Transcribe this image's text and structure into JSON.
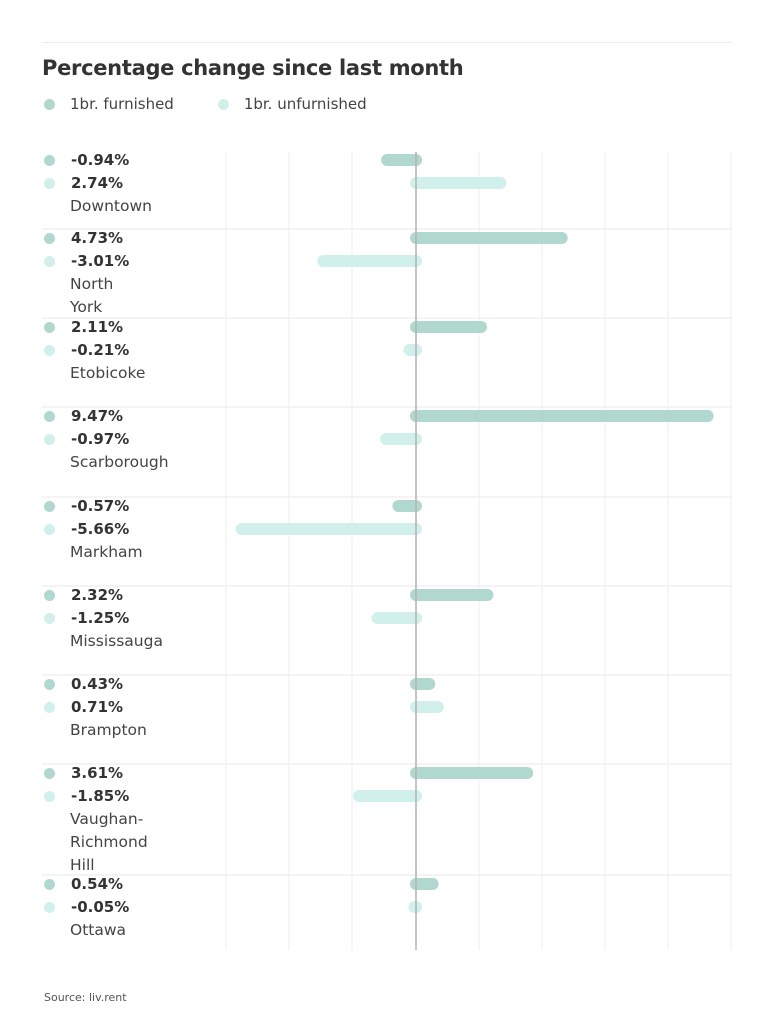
{
  "colors": {
    "furnished": "#b0d8cf",
    "unfurnished": "#d1f0eb",
    "zero_line": "#b5b5b5",
    "grid": "#f0f0f0",
    "text": "#333333"
  },
  "chart_data": {
    "type": "bar",
    "orientation": "horizontal",
    "title": "Percentage change since last month",
    "xlabel": "",
    "ylabel": "",
    "legend_position": "top-left",
    "grid": true,
    "xlim": [
      -6,
      10
    ],
    "categories": [
      "Downtown",
      "North York",
      "Etobicoke",
      "Scarborough",
      "Markham",
      "Mississauga",
      "Brampton",
      "Vaughan-\nRichmond Hill",
      "Ottawa"
    ],
    "series": [
      {
        "name": "1br. furnished",
        "values": [
          -0.94,
          4.73,
          2.11,
          9.47,
          -0.57,
          2.32,
          0.43,
          3.61,
          0.54
        ]
      },
      {
        "name": "1br. unfurnished",
        "values": [
          2.74,
          -3.01,
          -0.21,
          -0.97,
          -5.66,
          -1.25,
          0.71,
          -1.85,
          -0.05
        ]
      }
    ],
    "value_labels": {
      "furnished": [
        "-0.94%",
        "4.73%",
        "2.11%",
        "9.47%",
        "-0.57%",
        "2.32%",
        "0.43%",
        "3.61%",
        "0.54%"
      ],
      "unfurnished": [
        "2.74%",
        "-3.01%",
        "-0.21%",
        "-0.97%",
        "-5.66%",
        "-1.25%",
        "0.71%",
        "-1.85%",
        "-0.05%"
      ]
    }
  },
  "legend": [
    {
      "label": "1br. furnished",
      "key": "furnished"
    },
    {
      "label": "1br. unfurnished",
      "key": "unfurnished"
    }
  ],
  "rows": [
    {
      "name_lines": [
        "Downtown"
      ]
    },
    {
      "name_lines": [
        "North York"
      ]
    },
    {
      "name_lines": [
        "Etobicoke"
      ]
    },
    {
      "name_lines": [
        "Scarborough"
      ]
    },
    {
      "name_lines": [
        "Markham"
      ]
    },
    {
      "name_lines": [
        "Mississauga"
      ]
    },
    {
      "name_lines": [
        "Brampton"
      ]
    },
    {
      "name_lines": [
        "Vaughan-",
        "Richmond Hill"
      ]
    },
    {
      "name_lines": [
        "Ottawa"
      ]
    }
  ],
  "source": "Source: liv.rent"
}
